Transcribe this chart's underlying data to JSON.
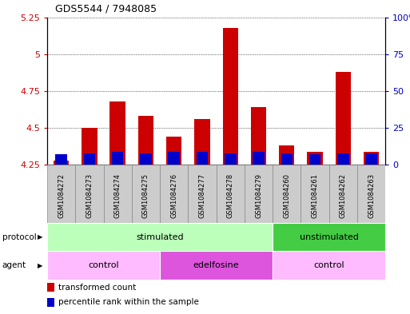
{
  "title": "GDS5544 / 7948085",
  "samples": [
    "GSM1084272",
    "GSM1084273",
    "GSM1084274",
    "GSM1084275",
    "GSM1084276",
    "GSM1084277",
    "GSM1084278",
    "GSM1084279",
    "GSM1084260",
    "GSM1084261",
    "GSM1084262",
    "GSM1084263"
  ],
  "transformed_count": [
    4.28,
    4.5,
    4.68,
    4.58,
    4.44,
    4.56,
    5.18,
    4.64,
    4.38,
    4.34,
    4.88,
    4.34
  ],
  "percentile_rank": [
    7,
    8,
    9,
    8,
    9,
    9,
    8,
    9,
    8,
    7,
    8,
    8
  ],
  "baseline": 4.25,
  "ylim_left": [
    4.25,
    5.25
  ],
  "ylim_right": [
    0,
    100
  ],
  "yticks_left": [
    4.25,
    4.5,
    4.75,
    5.0,
    5.25
  ],
  "yticks_right": [
    0,
    25,
    50,
    75,
    100
  ],
  "ytick_labels_left": [
    "4.25",
    "4.5",
    "4.75",
    "5",
    "5.25"
  ],
  "ytick_labels_right": [
    "0",
    "25",
    "50",
    "75",
    "100%"
  ],
  "bar_color_red": "#cc0000",
  "bar_color_blue": "#0000cc",
  "protocol_groups": [
    {
      "label": "stimulated",
      "start": 0,
      "end": 7,
      "color": "#bbffbb"
    },
    {
      "label": "unstimulated",
      "start": 8,
      "end": 11,
      "color": "#44cc44"
    }
  ],
  "agent_groups": [
    {
      "label": "control",
      "start": 0,
      "end": 3,
      "color": "#ffbbff"
    },
    {
      "label": "edelfosine",
      "start": 4,
      "end": 7,
      "color": "#dd55dd"
    },
    {
      "label": "control",
      "start": 8,
      "end": 11,
      "color": "#ffbbff"
    }
  ],
  "legend_items": [
    {
      "label": "transformed count",
      "color": "#cc0000"
    },
    {
      "label": "percentile rank within the sample",
      "color": "#0000cc"
    }
  ],
  "bar_width": 0.55,
  "grid_color": "#000000",
  "background_color": "#ffffff",
  "plot_bg_color": "#ffffff",
  "label_color_left": "#cc0000",
  "label_color_right": "#0000cc",
  "tick_fontsize": 8,
  "sample_fontsize": 6,
  "cell_color": "#cccccc",
  "cell_border_color": "#888888"
}
